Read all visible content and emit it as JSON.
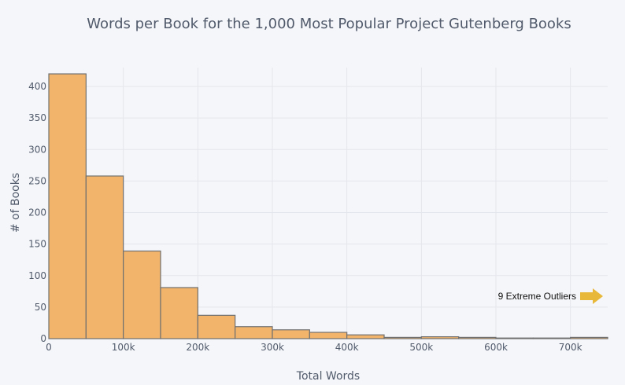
{
  "chart_data": {
    "type": "bar",
    "title": "Words per Book for the 1,000 Most Popular Project Gutenberg Books",
    "xlabel": "Total Words",
    "ylabel": "# of Books",
    "xlim": [
      0,
      750000
    ],
    "ylim": [
      0,
      430
    ],
    "bin_width": 50000,
    "x_ticks": [
      0,
      100000,
      200000,
      300000,
      400000,
      500000,
      600000,
      700000
    ],
    "x_tick_labels": [
      "0",
      "100k",
      "200k",
      "300k",
      "400k",
      "500k",
      "600k",
      "700k"
    ],
    "y_ticks": [
      0,
      50,
      100,
      150,
      200,
      250,
      300,
      350,
      400
    ],
    "y_tick_labels": [
      "0",
      "50",
      "100",
      "150",
      "200",
      "250",
      "300",
      "350",
      "400"
    ],
    "bins": [
      {
        "start": 0,
        "end": 50000,
        "count": 420
      },
      {
        "start": 50000,
        "end": 100000,
        "count": 258
      },
      {
        "start": 100000,
        "end": 150000,
        "count": 139
      },
      {
        "start": 150000,
        "end": 200000,
        "count": 81
      },
      {
        "start": 200000,
        "end": 250000,
        "count": 37
      },
      {
        "start": 250000,
        "end": 300000,
        "count": 19
      },
      {
        "start": 300000,
        "end": 350000,
        "count": 14
      },
      {
        "start": 350000,
        "end": 400000,
        "count": 10
      },
      {
        "start": 400000,
        "end": 450000,
        "count": 6
      },
      {
        "start": 450000,
        "end": 500000,
        "count": 2
      },
      {
        "start": 500000,
        "end": 550000,
        "count": 3
      },
      {
        "start": 550000,
        "end": 600000,
        "count": 2
      },
      {
        "start": 600000,
        "end": 650000,
        "count": 1
      },
      {
        "start": 650000,
        "end": 700000,
        "count": 1
      },
      {
        "start": 700000,
        "end": 750000,
        "count": 2
      }
    ],
    "annotation": {
      "text": "9 Extreme Outliers"
    },
    "grid": true,
    "colors": {
      "bar": "#f2b46b",
      "bar_outline": "#707070",
      "arrow": "#e8b83a",
      "background": "#f5f6f9"
    }
  }
}
